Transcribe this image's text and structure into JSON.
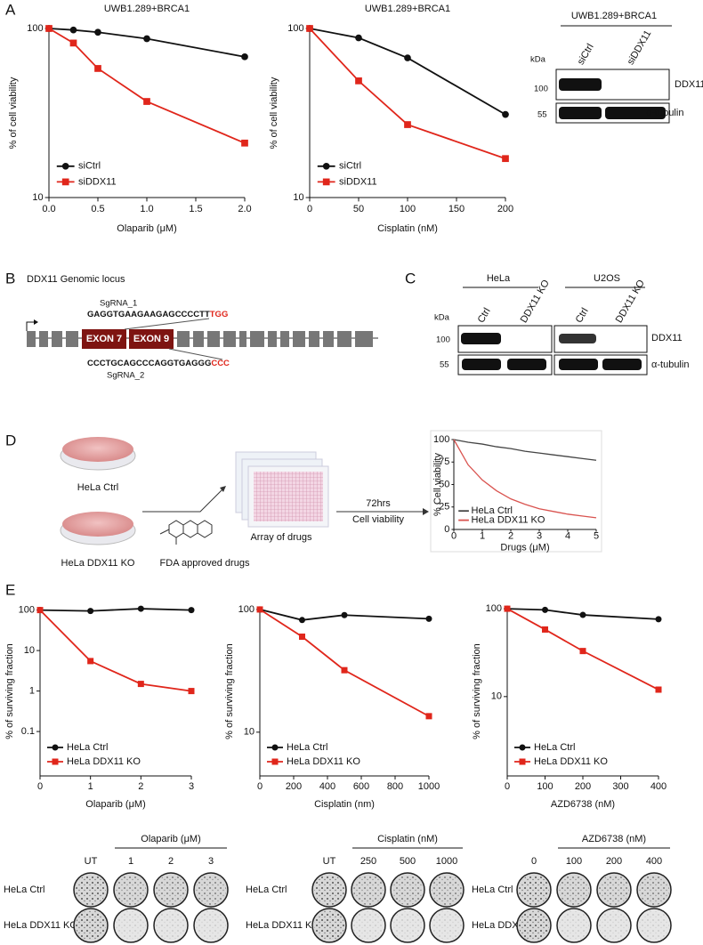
{
  "chart_data": [
    {
      "type": "line",
      "title": "UWB1.289+BRCA1",
      "x_label": "Olaparib (μM)",
      "y_label": "% of cell viability",
      "x": [
        0,
        0.25,
        0.5,
        1,
        2
      ],
      "xlim": [
        0,
        2
      ],
      "xticks": [
        {
          "value": 0,
          "label": "0.0"
        },
        0.5,
        {
          "value": 1,
          "label": "1.0"
        },
        1.5,
        {
          "value": 2,
          "label": "2.0"
        }
      ],
      "ylim": [
        10,
        100
      ],
      "yticks": [
        10,
        100
      ],
      "log_y": true,
      "grid": false,
      "legend": "lower left",
      "series": [
        {
          "name": "siCtrl",
          "color": "#111111",
          "marker": "circle",
          "values": [
            100,
            98,
            95,
            87,
            68
          ]
        },
        {
          "name": "siDDX11",
          "color": "#e0261b",
          "marker": "square",
          "values": [
            100,
            82,
            58,
            37,
            21
          ]
        }
      ]
    },
    {
      "type": "line",
      "title": "UWB1.289+BRCA1",
      "x_label": "Cisplatin (nM)",
      "y_label": "% of cell viability",
      "x": [
        0,
        50,
        100,
        200
      ],
      "xlim": [
        0,
        200
      ],
      "xticks": [
        0,
        50,
        100,
        150,
        200
      ],
      "ylim": [
        10,
        100
      ],
      "yticks": [
        10,
        100
      ],
      "log_y": true,
      "grid": false,
      "legend": "lower left",
      "series": [
        {
          "name": "siCtrl",
          "color": "#111111",
          "marker": "circle",
          "values": [
            100,
            88,
            67,
            31
          ]
        },
        {
          "name": "siDDX11",
          "color": "#e0261b",
          "marker": "square",
          "values": [
            100,
            49,
            27,
            17
          ]
        }
      ]
    },
    {
      "type": "line",
      "x_label": "Drugs (μM)",
      "y_label": "% Cell viability",
      "x": [
        0,
        0.5,
        1,
        1.5,
        2,
        2.5,
        3,
        3.5,
        4,
        4.5,
        5
      ],
      "xlim": [
        0,
        5
      ],
      "xticks": [
        0,
        1,
        2,
        3,
        4,
        5
      ],
      "ylim": [
        0,
        100
      ],
      "yticks": [
        0,
        25,
        50,
        75,
        100
      ],
      "log_y": false,
      "grid": false,
      "legend": "lower left",
      "series": [
        {
          "name": "HeLa  Ctrl",
          "color": "#444444",
          "values": [
            100,
            97,
            95,
            92,
            90,
            87,
            85,
            83,
            81,
            79,
            77
          ]
        },
        {
          "name": "HeLa  DDX11 KO",
          "color": "#d9534f",
          "values": [
            100,
            72,
            55,
            43,
            34,
            28,
            23,
            20,
            17,
            15,
            13
          ]
        }
      ]
    },
    {
      "type": "line",
      "x_label": "Olaparib (μM)",
      "y_label": "% of surviving fraction",
      "x": [
        0,
        1,
        2,
        3
      ],
      "xlim": [
        0,
        3
      ],
      "xticks": [
        0,
        1,
        2,
        3
      ],
      "ylim": [
        0.008,
        120
      ],
      "yticks": [
        0.1,
        1,
        10,
        100
      ],
      "log_y": true,
      "grid": false,
      "legend": "lower left",
      "series": [
        {
          "name": "HeLa Ctrl",
          "color": "#111111",
          "marker": "circle",
          "values": [
            100,
            95,
            108,
            100
          ]
        },
        {
          "name": "HeLa DDX11 KO",
          "color": "#e0261b",
          "marker": "square",
          "values": [
            100,
            5.5,
            1.5,
            1
          ]
        }
      ]
    },
    {
      "type": "line",
      "x_label": "Cisplatin (nm)",
      "y_label": "% of surviving fraction",
      "x": [
        0,
        250,
        500,
        1000
      ],
      "xlim": [
        0,
        1000
      ],
      "xticks": [
        0,
        200,
        400,
        600,
        800,
        1000
      ],
      "ylim": [
        4.4,
        105
      ],
      "yticks": [
        10,
        100
      ],
      "log_y": true,
      "grid": false,
      "legend": "lower left",
      "series": [
        {
          "name": "HeLa Ctrl",
          "color": "#111111",
          "marker": "circle",
          "values": [
            100,
            82,
            90,
            84
          ]
        },
        {
          "name": "HeLa DDX11 KO",
          "color": "#e0261b",
          "marker": "square",
          "values": [
            100,
            60,
            32,
            13.5
          ]
        }
      ]
    },
    {
      "type": "line",
      "x_label": "AZD6738 (nM)",
      "y_label": "% of surviving fraction",
      "x": [
        0,
        100,
        200,
        400
      ],
      "xlim": [
        0,
        400
      ],
      "xticks": [
        0,
        100,
        200,
        300,
        400
      ],
      "ylim": [
        1.25,
        105
      ],
      "yticks": [
        10,
        100
      ],
      "log_y": true,
      "grid": false,
      "legend": "lower left",
      "series": [
        {
          "name": "HeLa Ctrl",
          "color": "#111111",
          "marker": "circle",
          "values": [
            100,
            97,
            85,
            76
          ]
        },
        {
          "name": "HeLa DDX11 KO",
          "color": "#e0261b",
          "marker": "square",
          "values": [
            100,
            58,
            33,
            12
          ]
        }
      ]
    }
  ],
  "panel_labels": [
    "A",
    "B",
    "C",
    "D",
    "E"
  ],
  "blot_a": {
    "title": "UWB1.289+BRCA1",
    "kda": "kDa",
    "lanes": [
      "siCtrl",
      "siDDX11"
    ],
    "markers": [
      "100",
      "55"
    ],
    "bands": [
      "DDX11",
      "α-tubulin"
    ]
  },
  "locus": {
    "title": "DDX11 Genomic locus",
    "sg1_name": "SgRNA_1",
    "sg1_seq": "GAGGTGAAGAAGAGCCCCTT",
    "sg1_pam": "TGG",
    "sg2_seq": "CCCTGCAGCCCAGGTGAGGG",
    "sg2_pam": "CCC",
    "sg2_name": "SgRNA_2",
    "exons": [
      "EXON 7",
      "EXON 9"
    ]
  },
  "blot_c": {
    "kda": "kDa",
    "cells": [
      "HeLa",
      "U2OS"
    ],
    "lanes": [
      "Ctrl",
      "DDX11 KO",
      "Ctrl",
      "DDX11 KO"
    ],
    "markers": [
      "100",
      "55"
    ],
    "bands": [
      "DDX11",
      "α-tubulin"
    ]
  },
  "workflow": {
    "ctrl": "HeLa  Ctrl",
    "ko": "HeLa  DDX11 KO",
    "drugs": "FDA approved drugs",
    "array": "Array of drugs",
    "time": "72hrs",
    "readout": "Cell viability"
  },
  "plates": [
    {
      "drug": "Olaparib (μM)",
      "doses": [
        "UT",
        "1",
        "2",
        "3"
      ],
      "rows": [
        "HeLa Ctrl",
        "HeLa DDX11 KO"
      ]
    },
    {
      "drug": "Cisplatin (nM)",
      "doses": [
        "UT",
        "250",
        "500",
        "1000"
      ],
      "rows": [
        "HeLa Ctrl",
        "HeLa DDX11 KO"
      ]
    },
    {
      "drug": "AZD6738 (nM)",
      "doses": [
        "0",
        "100",
        "200",
        "400"
      ],
      "rows": [
        "HeLa Ctrl",
        "HeLa DDX11 KO"
      ]
    }
  ]
}
